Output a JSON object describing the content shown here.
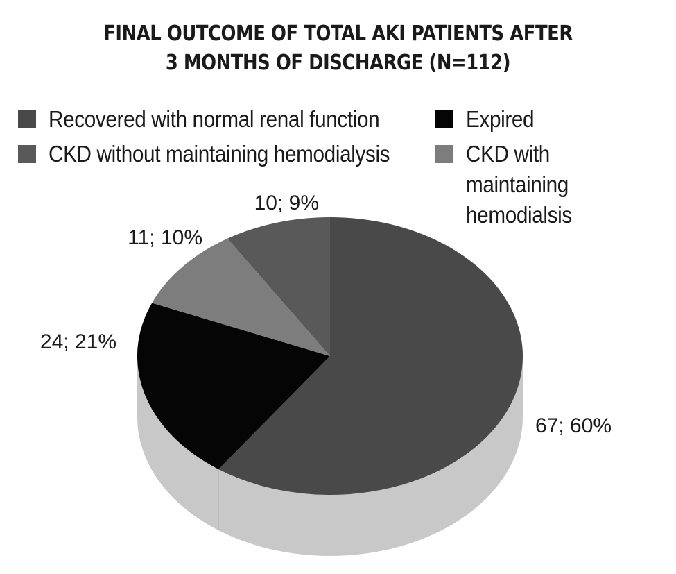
{
  "chart_data": {
    "type": "pie",
    "title_lines": [
      "FINAL OUTCOME OF TOTAL AKI PATIENTS AFTER",
      "3 MONTHS OF DISCHARGE (N=112)"
    ],
    "slices": [
      {
        "label": "Recovered with normal renal function",
        "value": 67,
        "percent": 60,
        "data_label": "67; 60%",
        "color": "#494949"
      },
      {
        "label": "Expired",
        "value": 24,
        "percent": 21,
        "data_label": "24; 21%",
        "color": "#050505"
      },
      {
        "label": "CKD with maintaining hemodialsis",
        "value": 11,
        "percent": 10,
        "data_label": "11; 10%",
        "color": "#7d7d7d"
      },
      {
        "label": "CKD without maintaining hemodialysis",
        "value": 10,
        "percent": 9,
        "data_label": "10; 9%",
        "color": "#595959"
      }
    ],
    "side_color": "#c8c8c8",
    "legend_placement": "top"
  }
}
